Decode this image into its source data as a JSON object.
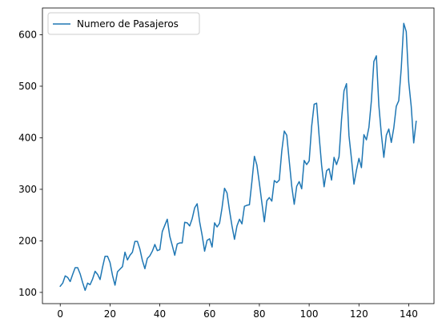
{
  "chart_data": {
    "type": "line",
    "title": "",
    "xlabel": "",
    "ylabel": "",
    "xlim": [
      -7.15,
      150.15
    ],
    "ylim": [
      78.2,
      651.8
    ],
    "x_ticks": [
      0,
      20,
      40,
      60,
      80,
      100,
      120,
      140
    ],
    "y_ticks": [
      100,
      200,
      300,
      400,
      500,
      600
    ],
    "grid": false,
    "legend_position": "top-left",
    "colors": {
      "series": "#1f77b4",
      "axes": "#000000",
      "legend_border": "#cccccc"
    },
    "series": [
      {
        "name": "Numero de Pasajeros",
        "x_start": 0,
        "values": [
          112,
          118,
          132,
          129,
          121,
          135,
          148,
          148,
          136,
          119,
          104,
          118,
          115,
          126,
          141,
          135,
          125,
          149,
          170,
          170,
          158,
          133,
          114,
          140,
          145,
          150,
          178,
          163,
          172,
          178,
          199,
          199,
          184,
          162,
          146,
          166,
          171,
          180,
          193,
          181,
          183,
          218,
          230,
          242,
          209,
          191,
          172,
          194,
          196,
          196,
          236,
          235,
          229,
          243,
          264,
          272,
          237,
          211,
          180,
          201,
          204,
          188,
          235,
          227,
          234,
          264,
          302,
          293,
          259,
          229,
          203,
          229,
          242,
          233,
          267,
          269,
          270,
          315,
          364,
          347,
          312,
          274,
          237,
          278,
          284,
          277,
          317,
          313,
          318,
          374,
          413,
          405,
          355,
          306,
          271,
          306,
          315,
          301,
          356,
          348,
          355,
          422,
          465,
          467,
          404,
          347,
          305,
          336,
          340,
          318,
          362,
          348,
          363,
          435,
          491,
          505,
          404,
          359,
          310,
          337,
          360,
          342,
          406,
          396,
          420,
          472,
          548,
          559,
          463,
          407,
          362,
          405,
          417,
          391,
          419,
          461,
          472,
          535,
          622,
          606,
          508,
          461,
          390,
          432
        ]
      }
    ]
  }
}
